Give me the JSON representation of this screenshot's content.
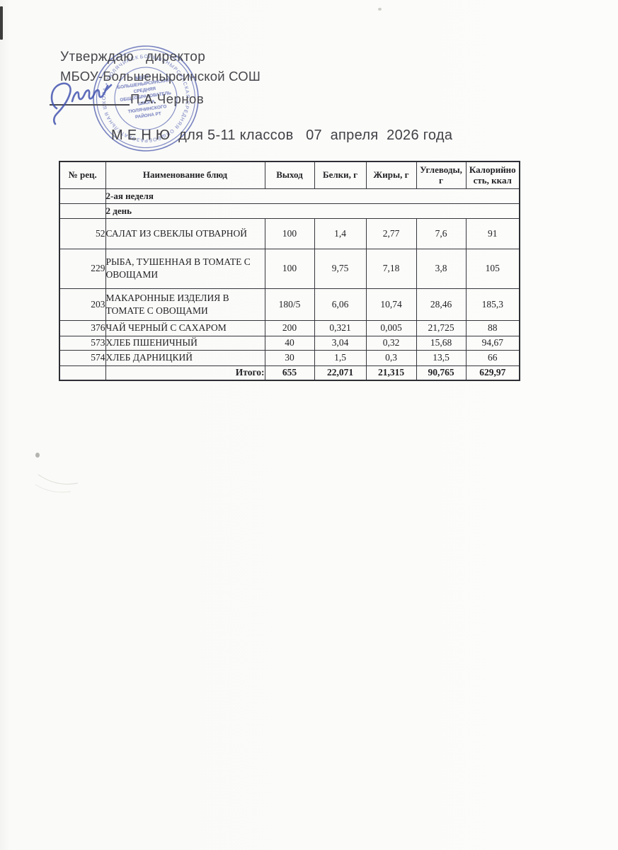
{
  "approval": {
    "line1": "Утверждаю   директор",
    "line2": "МБОУ-Большенырсинской СОШ",
    "signatory": "П.А.Чернов"
  },
  "title": "М Е Н Ю  для 5-11 классов   07  апреля  2026 года",
  "stamp": {
    "color": "#4a58ac",
    "ring_text": "БОЛЬШЕНЫРСИНСКАЯ СРЕДНЯЯ ОБЩЕОБРАЗОВАТЕЛЬНАЯ ШКОЛА • ТЮЛЯЧИНСКОГО РАЙОНА РТ • ",
    "center_lines": [
      "МБОУ-",
      "БОЛЬШЕНЫРСИНСКАЯ",
      "СРЕДНЯЯ",
      "ОБЩЕОБРАЗОВАТЕЛЬ",
      "ШКОЛА",
      "ТЮЛЯЧИНСКОГО",
      "РАЙОНА РТ"
    ]
  },
  "table": {
    "headers": [
      [
        "№ рец."
      ],
      [
        "Наименование блюд"
      ],
      [
        "Выход"
      ],
      [
        "Белки, г"
      ],
      [
        "Жиры, г"
      ],
      [
        "Углеводы,",
        "г"
      ],
      [
        "Калорийно",
        "сть, ккал"
      ]
    ],
    "rows": [
      {
        "type": "section",
        "label": "2-ая неделя"
      },
      {
        "type": "section",
        "label": "2 день"
      },
      {
        "type": "dish",
        "num": "52",
        "name": "САЛАТ ИЗ СВЕКЛЫ ОТВАРНОЙ",
        "values": [
          "100",
          "1,4",
          "2,77",
          "7,6",
          "91"
        ]
      },
      {
        "type": "dish",
        "num": "229",
        "name": "РЫБА, ТУШЕННАЯ В ТОМАТЕ С ОВОЩАМИ",
        "values": [
          "100",
          "9,75",
          "7,18",
          "3,8",
          "105"
        ]
      },
      {
        "type": "dish",
        "num": "203",
        "name": "МАКАРОННЫЕ ИЗДЕЛИЯ В ТОМАТЕ С ОВОЩАМИ",
        "values": [
          "180/5",
          "6,06",
          "10,74",
          "28,46",
          "185,3"
        ]
      },
      {
        "type": "dish",
        "num": "376",
        "name": "ЧАЙ ЧЕРНЫЙ С САХАРОМ",
        "values": [
          "200",
          "0,321",
          "0,005",
          "21,725",
          "88"
        ]
      },
      {
        "type": "dish",
        "num": "573",
        "name": "ХЛЕБ ПШЕНИЧНЫЙ",
        "values": [
          "40",
          "3,04",
          "0,32",
          "15,68",
          "94,67"
        ]
      },
      {
        "type": "dish",
        "num": "574",
        "name": "ХЛЕБ ДАРНИЦКИЙ",
        "values": [
          "30",
          "1,5",
          "0,3",
          "13,5",
          "66"
        ]
      },
      {
        "type": "total",
        "label": "Итого:",
        "values": [
          "655",
          "22,071",
          "21,315",
          "90,765",
          "629,97"
        ]
      }
    ]
  }
}
